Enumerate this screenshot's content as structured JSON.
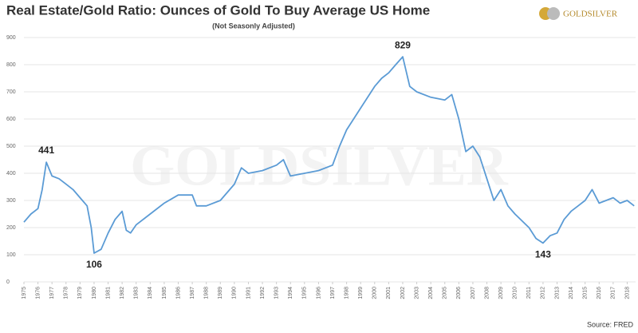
{
  "chart_data": {
    "type": "line",
    "title": "Real Estate/Gold Ratio: Ounces of Gold To Buy Average US Home",
    "subtitle": "(Not Seasonly Adjusted)",
    "brand": "GOLDSILVER",
    "source": "Source: FRED",
    "color": "#5b9bd5",
    "grid": true,
    "xlim": [
      1975,
      2018.6
    ],
    "ylim": [
      0,
      900
    ],
    "yticks": [
      0,
      100,
      200,
      300,
      400,
      500,
      600,
      700,
      800,
      900
    ],
    "xticks": [
      1975,
      1976,
      1977,
      1978,
      1979,
      1980,
      1981,
      1982,
      1983,
      1984,
      1985,
      1986,
      1987,
      1988,
      1989,
      1990,
      1991,
      1992,
      1993,
      1994,
      1995,
      1996,
      1997,
      1998,
      1999,
      2000,
      2001,
      2002,
      2003,
      2004,
      2005,
      2006,
      2007,
      2008,
      2009,
      2010,
      2011,
      2012,
      2013,
      2014,
      2015,
      2016,
      2017,
      2018
    ],
    "x": [
      1975,
      1975.5,
      1976,
      1976.3,
      1976.6,
      1977,
      1977.5,
      1978,
      1978.5,
      1979,
      1979.5,
      1979.8,
      1980,
      1980.5,
      1981,
      1981.5,
      1982,
      1982.3,
      1982.6,
      1983,
      1984,
      1985,
      1986,
      1987,
      1987.3,
      1988,
      1989,
      1990,
      1990.5,
      1991,
      1992,
      1993,
      1993.5,
      1994,
      1995,
      1996,
      1997,
      1997.5,
      1998,
      1999,
      2000,
      2000.5,
      2001,
      2001.5,
      2002,
      2002.5,
      2003,
      2004,
      2005,
      2005.5,
      2006,
      2006.5,
      2007,
      2007.5,
      2008,
      2008.5,
      2009,
      2009.5,
      2010,
      2011,
      2011.5,
      2012,
      2012.5,
      2013,
      2013.5,
      2014,
      2014.5,
      2015,
      2015.5,
      2016,
      2016.5,
      2017,
      2017.5,
      2018,
      2018.5
    ],
    "values": [
      220,
      250,
      270,
      340,
      441,
      390,
      380,
      360,
      340,
      310,
      280,
      200,
      106,
      120,
      180,
      230,
      260,
      190,
      180,
      210,
      250,
      290,
      320,
      320,
      280,
      280,
      300,
      360,
      420,
      400,
      410,
      430,
      450,
      390,
      400,
      410,
      430,
      500,
      560,
      640,
      720,
      750,
      770,
      800,
      829,
      720,
      700,
      680,
      670,
      690,
      600,
      480,
      500,
      460,
      380,
      300,
      340,
      280,
      250,
      200,
      160,
      143,
      170,
      180,
      230,
      260,
      280,
      300,
      340,
      290,
      300,
      310,
      290,
      300,
      280
    ],
    "annotations": [
      {
        "label": "441",
        "x": 1976.6,
        "y": 441
      },
      {
        "label": "106",
        "x": 1980,
        "y": 106
      },
      {
        "label": "829",
        "x": 2002,
        "y": 829
      },
      {
        "label": "143",
        "x": 2012,
        "y": 143
      }
    ]
  }
}
